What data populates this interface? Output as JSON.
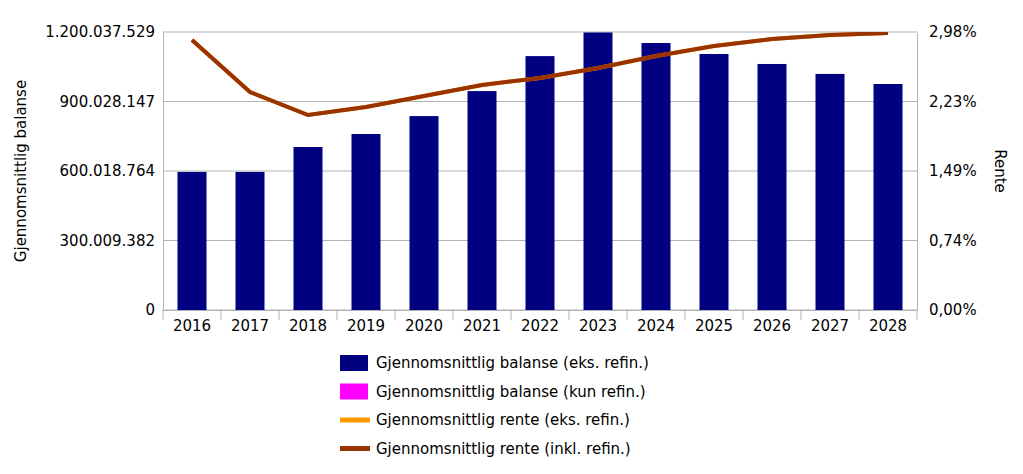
{
  "chart_data": {
    "type": "bar",
    "categories": [
      "2016",
      "2017",
      "2018",
      "2019",
      "2020",
      "2021",
      "2022",
      "2023",
      "2024",
      "2025",
      "2026",
      "2027",
      "2028"
    ],
    "y_label": "Gjennomsnittlig balanse",
    "y2_label": "Rente",
    "ylim": [
      0,
      1200037529
    ],
    "yticks": [
      0,
      {
        "value": 300009382,
        "label": "300.009.382"
      },
      {
        "value": 600018764,
        "label": "600.018.764"
      },
      {
        "value": 900028147,
        "label": "900.028.147"
      },
      {
        "value": 1200037529,
        "label": "1.200.037.529"
      }
    ],
    "y2lim": [
      0,
      2.98
    ],
    "y2ticks": [
      {
        "value": 0,
        "label": "0,00%"
      },
      {
        "value": 0.74,
        "label": "0,74%"
      },
      {
        "value": 1.49,
        "label": "1,49%"
      },
      {
        "value": 2.23,
        "label": "2,23%"
      },
      {
        "value": 2.98,
        "label": "2,98%"
      }
    ],
    "grid": true,
    "stacked": true,
    "legend": "bottom",
    "series": [
      {
        "name": "Gjennomsnittlig balanse (eks. refin.)",
        "type": "bar",
        "color": "#000080",
        "values": [
          596000000,
          596000000,
          703600000,
          759700000,
          837000000,
          945000000,
          1096000000,
          1198000000,
          1152500000,
          1105000000,
          1062000000,
          1019000000,
          975500000
        ]
      },
      {
        "name": "Gjennomsnittlig balanse (kun refin.)",
        "type": "bar",
        "color": "#ff00ff",
        "values": [
          0,
          0,
          0,
          0,
          0,
          0,
          0,
          0,
          0,
          0,
          0,
          0,
          0
        ]
      },
      {
        "name": "Gjennomsnittlig rente (eks. refin.)",
        "type": "line",
        "axis": "y2",
        "color": "#ff9900",
        "values": [
          2.894,
          2.337,
          2.09,
          2.176,
          2.294,
          2.412,
          2.487,
          2.594,
          2.723,
          2.83,
          2.905,
          2.948,
          2.969
        ]
      },
      {
        "name": "Gjennomsnittlig rente (inkl. refin.)",
        "type": "line",
        "axis": "y2",
        "color": "#993300",
        "values": [
          2.894,
          2.337,
          2.09,
          2.176,
          2.294,
          2.412,
          2.487,
          2.594,
          2.723,
          2.83,
          2.905,
          2.948,
          2.969
        ]
      }
    ]
  }
}
